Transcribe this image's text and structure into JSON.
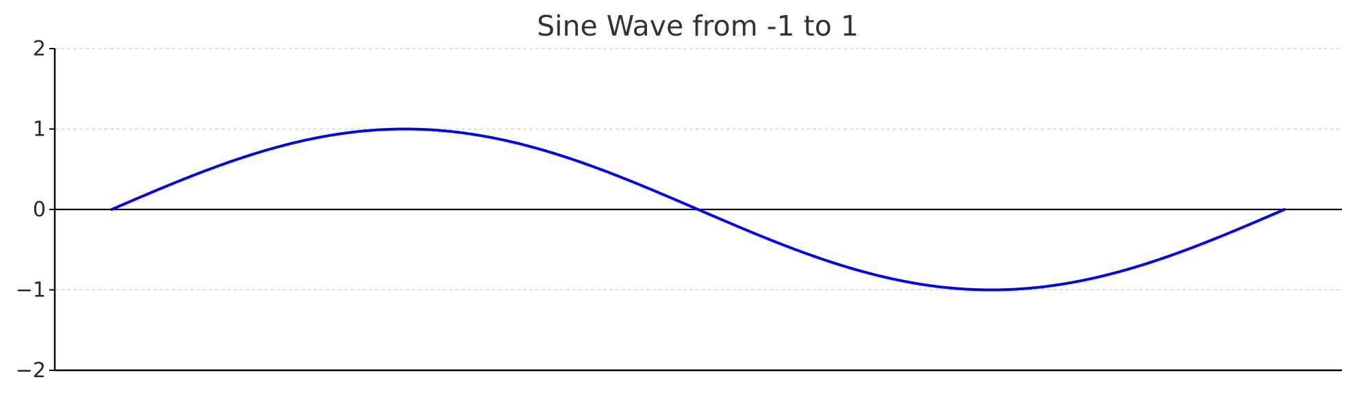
{
  "chart_data": {
    "type": "line",
    "title": "Sine Wave from -1 to 1",
    "xlabel": "",
    "ylabel": "",
    "x_axis_visible": false,
    "xlim": [
      0,
      6.2832
    ],
    "ylim": [
      -2,
      2
    ],
    "yticks": [
      2,
      1,
      0,
      -1,
      -2
    ],
    "ytick_labels": [
      "2",
      "1",
      "0",
      "−1",
      "−2"
    ],
    "grid": "horizontal dashed",
    "zero_line": true,
    "series": [
      {
        "color": "#0000ff",
        "function": "sin(x)",
        "x": [
          0.0,
          0.3927,
          0.7854,
          1.1781,
          1.5708,
          1.9635,
          2.3562,
          2.7489,
          3.1416,
          3.5343,
          3.927,
          4.3197,
          4.7124,
          5.1051,
          5.4978,
          5.8905,
          6.2832
        ],
        "values": [
          0.0,
          0.3827,
          0.7071,
          0.9239,
          1.0,
          0.9239,
          0.7071,
          0.3827,
          0.0,
          -0.3827,
          -0.7071,
          -0.9239,
          -1.0,
          -0.9239,
          -0.7071,
          -0.3827,
          0.0
        ]
      }
    ]
  }
}
